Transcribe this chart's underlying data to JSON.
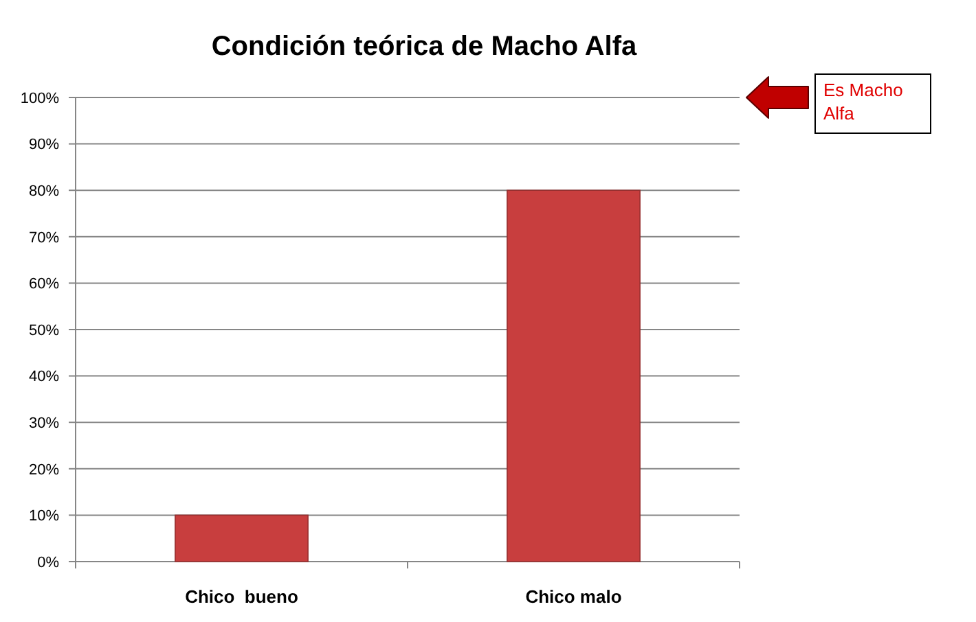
{
  "chart_data": {
    "type": "bar",
    "title": "Condición teórica de Macho Alfa",
    "categories": [
      "Chico  bueno",
      "Chico malo"
    ],
    "values": [
      10,
      80
    ],
    "color": "#c83e3e",
    "ylim": [
      0,
      100
    ],
    "yticks": [
      {
        "value": 0,
        "label": "0%"
      },
      {
        "value": 10,
        "label": "10%"
      },
      {
        "value": 20,
        "label": "20%"
      },
      {
        "value": 30,
        "label": "30%"
      },
      {
        "value": 40,
        "label": "40%"
      },
      {
        "value": 50,
        "label": "50%"
      },
      {
        "value": 60,
        "label": "60%"
      },
      {
        "value": 70,
        "label": "70%"
      },
      {
        "value": 80,
        "label": "80%"
      },
      {
        "value": 90,
        "label": "90%"
      },
      {
        "value": 100,
        "label": "100%"
      }
    ],
    "grid": true,
    "annotations": [
      "Es Macho Alfa"
    ]
  }
}
